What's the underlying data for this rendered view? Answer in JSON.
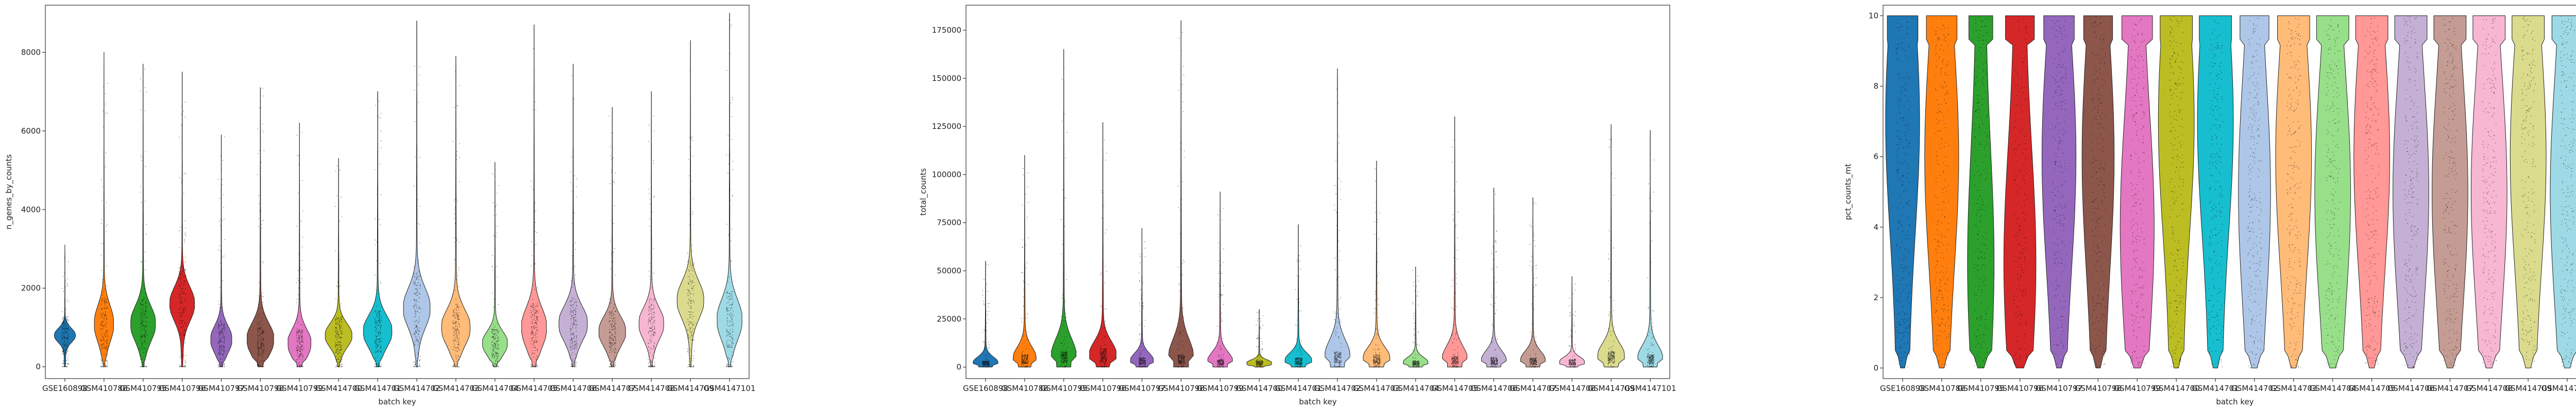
{
  "palette": [
    "#1f77b4",
    "#ff7f0e",
    "#2ca02c",
    "#d62728",
    "#9467bd",
    "#8c564b",
    "#e377c2",
    "#bcbd22",
    "#17becf",
    "#aec7e8",
    "#ffbb78",
    "#98df8a",
    "#ff9896",
    "#c5b0d5",
    "#c49c94",
    "#f7b6d2",
    "#dbdb8d",
    "#9edae5"
  ],
  "chart_data": [
    {
      "type": "violin",
      "xlabel": "batch key",
      "ylabel": "n_genes_by_counts",
      "ylim": [
        -300,
        9200
      ],
      "yticks": [
        0,
        2000,
        4000,
        6000,
        8000
      ],
      "categories": [
        "GSE160898",
        "GSM410788",
        "GSM410795",
        "GSM410796",
        "GSM410797",
        "GSM410798",
        "GSM410799",
        "GSM414700",
        "GSM414701",
        "GSM414702",
        "GSM414703",
        "GSM414704",
        "GSM414705",
        "GSM414706",
        "GSM414707",
        "GSM414708",
        "GSM414709",
        "GSM4147101"
      ],
      "max": [
        3100,
        8000,
        7700,
        7500,
        5900,
        7100,
        6200,
        5300,
        7000,
        8800,
        7900,
        5200,
        8700,
        7700,
        6600,
        7000,
        8300,
        9000
      ],
      "median": [
        800,
        1100,
        1100,
        1600,
        700,
        700,
        600,
        800,
        900,
        1500,
        1000,
        600,
        1000,
        1100,
        900,
        1100,
        1700,
        1200
      ],
      "width": [
        0.4,
        0.35,
        0.5,
        0.5,
        0.4,
        0.55,
        0.45,
        0.55,
        0.6,
        0.55,
        0.6,
        0.5,
        0.5,
        0.6,
        0.55,
        0.5,
        0.55,
        0.5
      ]
    },
    {
      "type": "violin",
      "xlabel": "batch key",
      "ylabel": "total_counts",
      "ylim": [
        -6000,
        188000
      ],
      "yticks": [
        0,
        25000,
        50000,
        75000,
        100000,
        125000,
        150000,
        175000
      ],
      "categories": [
        "GSE160898",
        "GSM410788",
        "GSM410795",
        "GSM410796",
        "GSM410797",
        "GSM410798",
        "GSM410799",
        "GSM414700",
        "GSM414701",
        "GSM414702",
        "GSM414703",
        "GSM414704",
        "GSM414705",
        "GSM414706",
        "GSM414707",
        "GSM414708",
        "GSM414709",
        "GSM4147101"
      ],
      "max": [
        55000,
        110000,
        165000,
        127000,
        72000,
        180000,
        91000,
        30000,
        74000,
        155000,
        107000,
        52000,
        130000,
        93000,
        88000,
        47000,
        126000,
        123000
      ],
      "median": [
        2000,
        4000,
        5000,
        6000,
        3000,
        4000,
        2500,
        2000,
        3000,
        5000,
        4000,
        2000,
        3500,
        3000,
        3000,
        2500,
        5000,
        4000
      ],
      "width": [
        0.5,
        0.45,
        0.5,
        0.55,
        0.45,
        0.5,
        0.5,
        0.5,
        0.55,
        0.5,
        0.55,
        0.5,
        0.5,
        0.5,
        0.5,
        0.5,
        0.55,
        0.5
      ]
    },
    {
      "type": "violin",
      "xlabel": "batch key",
      "ylabel": "pct_counts_mt",
      "ylim": [
        -0.3,
        10.3
      ],
      "yticks": [
        0,
        2,
        4,
        6,
        8,
        10
      ],
      "categories": [
        "GSE160898",
        "GSM410788",
        "GSM410795",
        "GSM410796",
        "GSM410797",
        "GSM410798",
        "GSM410799",
        "GSM414700",
        "GSM414701",
        "GSM414702",
        "GSM414703",
        "GSM414704",
        "GSM414705",
        "GSM414706",
        "GSM414707",
        "GSM414708",
        "GSM414709",
        "GSM4147101"
      ],
      "max": [
        10,
        10,
        10,
        10,
        10,
        10,
        10,
        10,
        10,
        10,
        10,
        10,
        10,
        10,
        10,
        10,
        10,
        10
      ],
      "median": [
        7,
        6,
        3,
        3,
        6,
        6,
        4,
        7,
        7,
        5,
        6,
        5,
        6,
        5,
        5,
        5,
        6,
        5
      ],
      "width": [
        0.75,
        0.75,
        0.55,
        0.7,
        0.75,
        0.7,
        0.75,
        0.8,
        0.8,
        0.7,
        0.8,
        0.8,
        0.8,
        0.8,
        0.8,
        0.8,
        0.8,
        0.75
      ]
    }
  ]
}
